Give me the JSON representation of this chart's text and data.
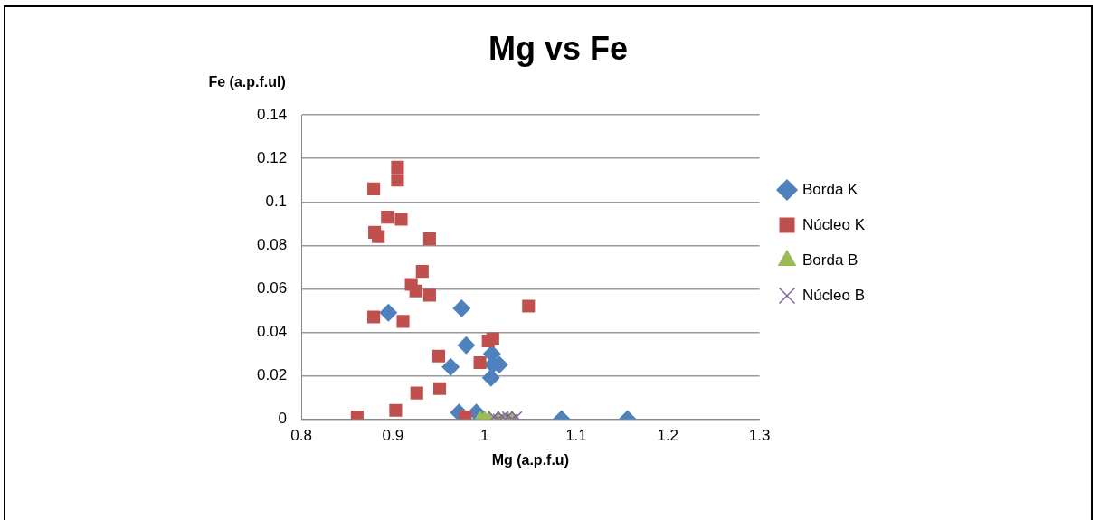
{
  "chart_data": {
    "type": "scatter",
    "title": "Mg vs Fe",
    "xlabel": "Mg (a.p.f.u)",
    "ylabel": "Fe (a.p.f.ul)",
    "xlim": [
      0.8,
      1.3
    ],
    "xticks": [
      0.8,
      0.9,
      1,
      1.1,
      1.2,
      1.3
    ],
    "ylim": [
      0,
      0.14
    ],
    "yticks": [
      0,
      0.02,
      0.04,
      0.06,
      0.08,
      0.1,
      0.12,
      0.14
    ],
    "grid": "y",
    "legend": "right",
    "series": [
      {
        "name": "Borda K",
        "color": "#4f81bd",
        "marker": "diamond",
        "x": [
          0.895,
          0.975,
          0.98,
          0.963,
          1.008,
          1.016,
          1.007,
          1.009,
          0.972,
          0.991,
          1.084,
          1.156
        ],
        "values": [
          0.049,
          0.051,
          0.034,
          0.024,
          0.03,
          0.025,
          0.019,
          0.025,
          0.003,
          0.003,
          0.0,
          0.0
        ]
      },
      {
        "name": "Núcleo K",
        "color": "#c0504d",
        "marker": "square",
        "x": [
          0.861,
          0.879,
          0.905,
          0.905,
          0.894,
          0.88,
          0.884,
          0.909,
          0.94,
          0.932,
          0.92,
          0.925,
          0.94,
          0.879,
          0.911,
          1.048,
          1.009,
          1.004,
          0.95,
          0.995,
          0.951,
          0.926,
          0.903,
          0.979
        ],
        "values": [
          0.001,
          0.106,
          0.116,
          0.11,
          0.093,
          0.086,
          0.084,
          0.092,
          0.083,
          0.068,
          0.062,
          0.059,
          0.057,
          0.047,
          0.045,
          0.052,
          0.037,
          0.036,
          0.029,
          0.026,
          0.014,
          0.012,
          0.004,
          0.001
        ]
      },
      {
        "name": "Borda B",
        "color": "#9bbb59",
        "marker": "triangle",
        "x": [
          0.995,
          1.0,
          1.005,
          1.015,
          1.025,
          1.03
        ],
        "values": [
          0.0,
          0.0,
          0.0,
          0.0,
          0.0,
          0.0
        ]
      },
      {
        "name": "Núcleo B",
        "color": "#8064a2",
        "marker": "cross",
        "x": [
          1.01,
          1.015,
          1.02,
          1.025,
          1.03,
          1.035
        ],
        "values": [
          0.001,
          0.0,
          0.001,
          0.001,
          0.0,
          0.001
        ]
      }
    ]
  }
}
